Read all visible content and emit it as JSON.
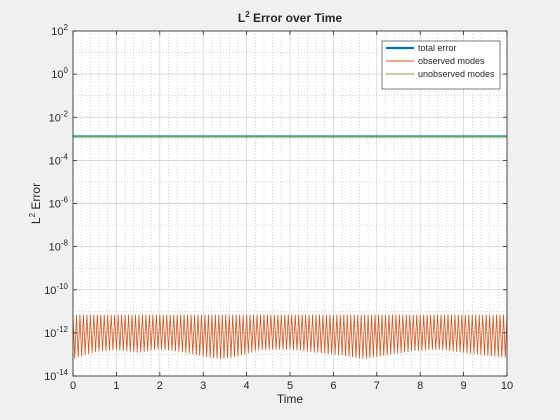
{
  "chart_data": {
    "type": "line",
    "title_parts": {
      "prefix": "L",
      "sup": "2",
      "suffix": " Error over Time"
    },
    "xlabel": "Time",
    "ylabel_parts": {
      "prefix": "L",
      "sup": "2",
      "suffix": " Error"
    },
    "xlim": [
      0,
      10
    ],
    "ylim": [
      1e-14,
      100
    ],
    "yscale": "log",
    "grid": true,
    "minor_grid": true,
    "legend_position": "top-right",
    "xticks": [
      0,
      1,
      2,
      3,
      4,
      5,
      6,
      7,
      8,
      9,
      10
    ],
    "xtick_labels": [
      "0",
      "1",
      "2",
      "3",
      "4",
      "5",
      "6",
      "7",
      "8",
      "9",
      "10"
    ],
    "ytick_exponents": [
      -14,
      -12,
      -10,
      -8,
      -6,
      -4,
      -2,
      0,
      2
    ],
    "ytick_base": "10",
    "series": [
      {
        "name": "total error",
        "color": "#0072BD",
        "style": "thick-line",
        "constant": 0.0013
      },
      {
        "name": "observed modes",
        "color": "#D95319",
        "style": "oscillating",
        "upper_envelope": 7e-12,
        "oscillation_period": 0.08,
        "lower_envelope_points": {
          "x": [
            0,
            0.5,
            1,
            1.5,
            2,
            2.5,
            3,
            3.4,
            3.8,
            4.3,
            5,
            5.6,
            6.2,
            6.7,
            7.2,
            7.8,
            8.4,
            9,
            9.5,
            10
          ],
          "y": [
            6e-14,
            1.3e-13,
            1.6e-13,
            1.2e-13,
            1.7e-13,
            1.3e-13,
            8e-14,
            6e-14,
            8e-14,
            1.6e-13,
            1.7e-13,
            1.2e-13,
            9e-14,
            6e-14,
            9e-14,
            1.4e-13,
            1.7e-13,
            1.2e-13,
            9e-14,
            7e-14
          ]
        }
      },
      {
        "name": "unobserved modes",
        "color": "#77AC30",
        "style": "thin-line",
        "constant": 0.0013
      }
    ]
  }
}
